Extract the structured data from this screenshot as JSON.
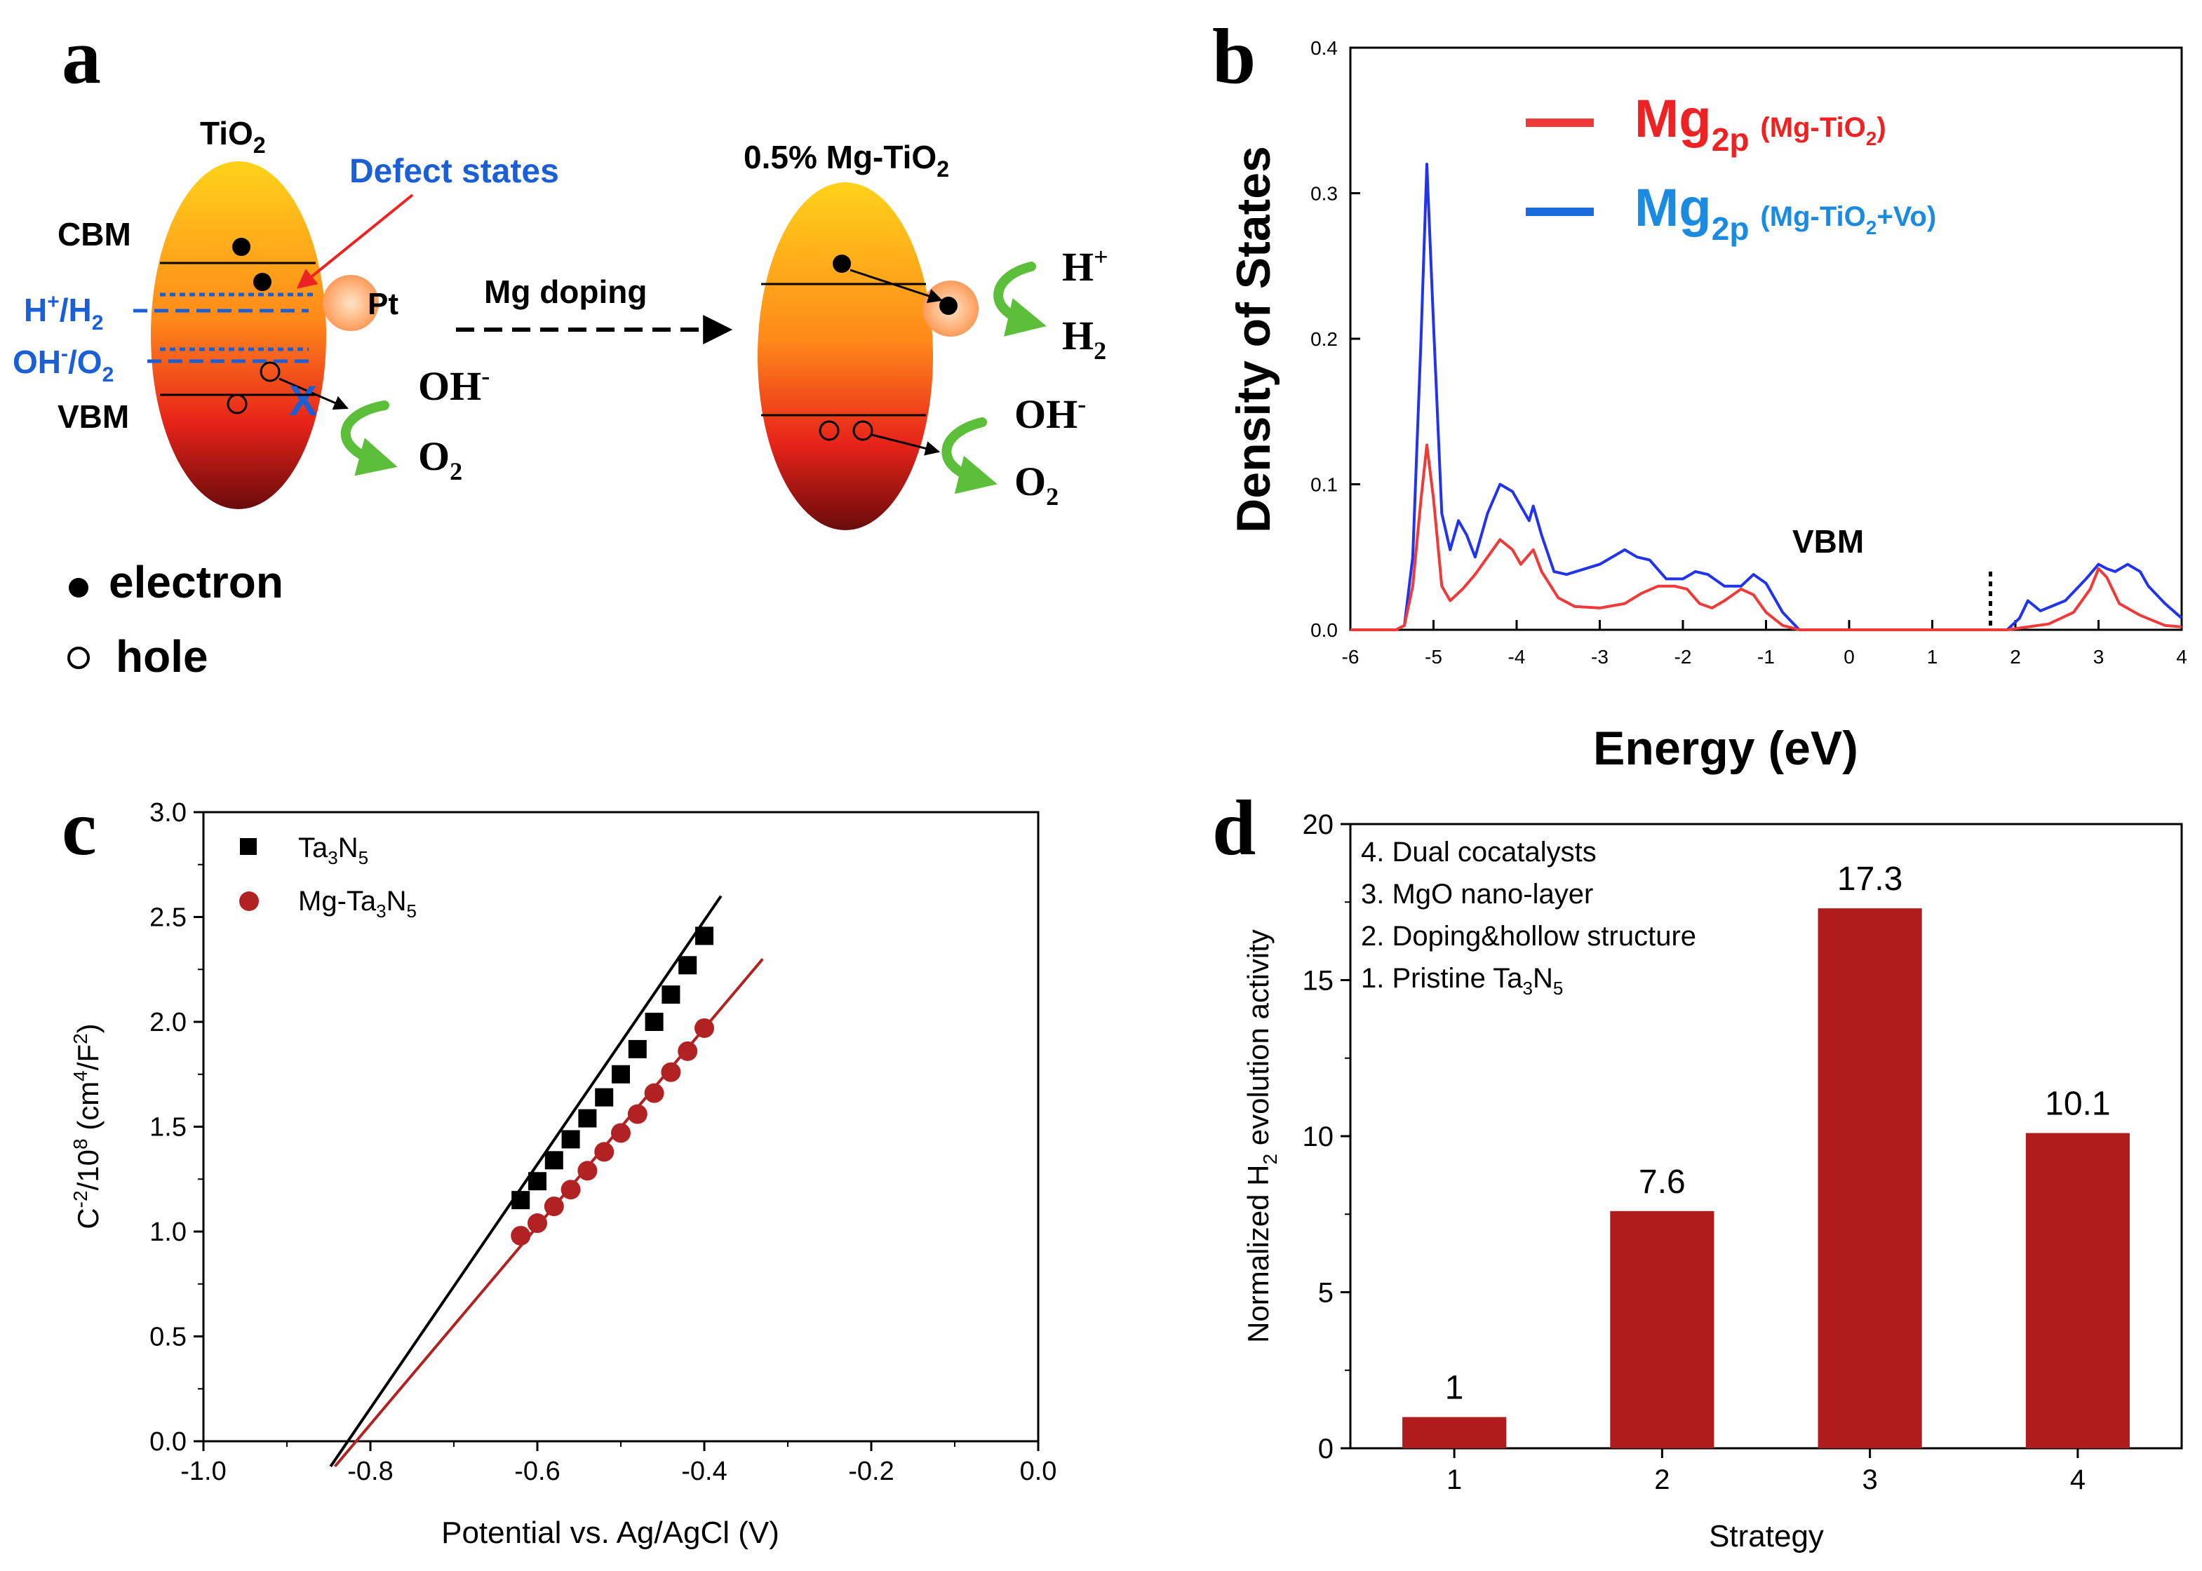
{
  "panels": {
    "a": {
      "letter": "a",
      "left_title": "TiO",
      "left_title_sub": "2",
      "defect_label": "Defect states",
      "cbm": "CBM",
      "vbm": "VBM",
      "h_label": "H",
      "h_sup": "+",
      "h_slash": "/H",
      "h_sub": "2",
      "oh_label": "OH",
      "oh_sup": "-",
      "oh_slash": "/O",
      "oh_sub": "2",
      "pt": "Pt",
      "arrow_label": "Mg  doping",
      "right_title": "0.5% Mg-TiO",
      "right_title_sub": "2",
      "oh_out": "OH",
      "oh_out_sup": "-",
      "o2_out": "O",
      "o2_out_sub": "2",
      "h_out": "H",
      "h_out_sup": "+",
      "h2_out": "H",
      "h2_out_sub": "2",
      "legend_electron": "electron",
      "legend_hole": "hole",
      "blocked_mark": "X"
    }
  },
  "colors": {
    "red": "#ee2222",
    "blue": "#1a5fd6",
    "dark_red": "#b01818",
    "green": "#5bbf3a",
    "dos_blue": "#2233ee",
    "dos_red": "#f03a3a",
    "ta3n5_line": "#000000",
    "mg_ta3n5": "#b22222"
  },
  "chart_data": [
    {
      "panel": "b",
      "letter": "b",
      "type": "line",
      "xlabel": "Energy (eV)",
      "ylabel": "Density of States",
      "xlim": [
        -6,
        4
      ],
      "ylim": [
        0,
        0.4
      ],
      "xticks": [
        "-6",
        "-5",
        "-4",
        "-3",
        "-2",
        "-1",
        "0",
        "1",
        "2",
        "3",
        "4"
      ],
      "yticks": [
        "0.0",
        "0.1",
        "0.2",
        "0.3",
        "0.4"
      ],
      "annotation": "VBM",
      "vbm_marker_x": 1.7,
      "legend": [
        {
          "main": "Mg",
          "sub": "2p",
          "paren": "(Mg-TiO",
          "paren_sub": "2",
          "paren_end": ")"
        },
        {
          "main": "Mg",
          "sub": "2p",
          "paren": "(Mg-TiO",
          "paren_sub": "2",
          "paren_end": "+Vo)"
        }
      ],
      "series": [
        {
          "name": "Mg2p (Mg-TiO2)",
          "x": [
            -6,
            -5.45,
            -5.35,
            -5.25,
            -5.15,
            -5.08,
            -5.0,
            -4.9,
            -4.8,
            -4.65,
            -4.5,
            -4.35,
            -4.2,
            -4.05,
            -3.95,
            -3.8,
            -3.7,
            -3.5,
            -3.3,
            -3.0,
            -2.7,
            -2.5,
            -2.3,
            -2.1,
            -1.95,
            -1.8,
            -1.65,
            -1.5,
            -1.3,
            -1.15,
            -1.0,
            -0.8,
            -0.6,
            0,
            1,
            1.9,
            2.4,
            2.7,
            2.9,
            3.0,
            3.1,
            3.25,
            3.5,
            3.8,
            4.0
          ],
          "y": [
            0,
            0,
            0.003,
            0.03,
            0.09,
            0.127,
            0.09,
            0.03,
            0.02,
            0.028,
            0.038,
            0.05,
            0.062,
            0.055,
            0.045,
            0.055,
            0.04,
            0.022,
            0.016,
            0.015,
            0.018,
            0.025,
            0.03,
            0.03,
            0.028,
            0.018,
            0.015,
            0.02,
            0.028,
            0.024,
            0.012,
            0.003,
            0,
            0,
            0,
            0,
            0.004,
            0.012,
            0.028,
            0.042,
            0.036,
            0.018,
            0.01,
            0.003,
            0.002
          ]
        },
        {
          "name": "Mg2p (Mg-TiO2+Vo)",
          "x": [
            -6,
            -5.45,
            -5.35,
            -5.25,
            -5.15,
            -5.08,
            -5.0,
            -4.9,
            -4.8,
            -4.7,
            -4.6,
            -4.5,
            -4.35,
            -4.2,
            -4.05,
            -3.95,
            -3.85,
            -3.8,
            -3.7,
            -3.55,
            -3.4,
            -3.0,
            -2.7,
            -2.55,
            -2.4,
            -2.2,
            -2.0,
            -1.85,
            -1.7,
            -1.5,
            -1.3,
            -1.15,
            -1.0,
            -0.8,
            -0.6,
            0,
            1,
            1.9,
            2.05,
            2.15,
            2.3,
            2.6,
            2.85,
            3.0,
            3.1,
            3.2,
            3.35,
            3.5,
            3.6,
            3.8,
            4.0
          ],
          "y": [
            0,
            0,
            0.003,
            0.05,
            0.2,
            0.32,
            0.21,
            0.08,
            0.055,
            0.075,
            0.065,
            0.05,
            0.08,
            0.1,
            0.095,
            0.085,
            0.075,
            0.085,
            0.065,
            0.04,
            0.038,
            0.045,
            0.055,
            0.05,
            0.048,
            0.035,
            0.035,
            0.04,
            0.038,
            0.03,
            0.03,
            0.038,
            0.032,
            0.012,
            0,
            0,
            0,
            0,
            0.008,
            0.02,
            0.013,
            0.02,
            0.035,
            0.045,
            0.042,
            0.04,
            0.045,
            0.04,
            0.03,
            0.018,
            0.008
          ]
        }
      ]
    },
    {
      "panel": "c",
      "letter": "c",
      "type": "scatter",
      "xlabel": "Potential vs. Ag/AgCl (V)",
      "ylabel": "C",
      "ylabel_sup1": "-2",
      "ylabel_mid": "/10",
      "ylabel_sup2": "8",
      "ylabel_end": " (cm",
      "ylabel_sup3": "4",
      "ylabel_end2": "/F",
      "ylabel_sup4": "2",
      "ylabel_close": ")",
      "xlim": [
        -1.0,
        0.0
      ],
      "ylim": [
        0.0,
        3.0
      ],
      "xticks": [
        "-1.0",
        "-0.8",
        "-0.6",
        "-0.4",
        "-0.2",
        "0.0"
      ],
      "yticks": [
        "0.0",
        "0.5",
        "1.0",
        "1.5",
        "2.0",
        "2.5",
        "3.0"
      ],
      "series": [
        {
          "name": "Ta3N5",
          "legend_main": "Ta",
          "legend_sub1": "3",
          "legend_mid": "N",
          "legend_sub2": "5",
          "marker": "square",
          "x": [
            -0.62,
            -0.6,
            -0.58,
            -0.56,
            -0.54,
            -0.52,
            -0.5,
            -0.48,
            -0.46,
            -0.44,
            -0.42,
            -0.4
          ],
          "y": [
            1.15,
            1.24,
            1.34,
            1.44,
            1.54,
            1.64,
            1.75,
            1.87,
            2.0,
            2.13,
            2.27,
            2.41
          ],
          "fit_x": [
            -0.87,
            -0.38
          ],
          "fit_y": [
            -0.25,
            2.6
          ]
        },
        {
          "name": "Mg-Ta3N5",
          "legend_main": "Mg-Ta",
          "legend_sub1": "3",
          "legend_mid": "N",
          "legend_sub2": "5",
          "marker": "circle",
          "x": [
            -0.62,
            -0.6,
            -0.58,
            -0.56,
            -0.54,
            -0.52,
            -0.5,
            -0.48,
            -0.46,
            -0.44,
            -0.42,
            -0.4
          ],
          "y": [
            0.98,
            1.04,
            1.12,
            1.2,
            1.29,
            1.38,
            1.47,
            1.56,
            1.66,
            1.76,
            1.86,
            1.97
          ],
          "fit_x": [
            -0.87,
            -0.33
          ],
          "fit_y": [
            -0.25,
            2.3
          ]
        }
      ]
    },
    {
      "panel": "d",
      "letter": "d",
      "type": "bar",
      "xlabel": "Strategy",
      "ylabel": "Normalized H",
      "ylabel_sub": "2",
      "ylabel_end": " evolution activity",
      "categories": [
        "1",
        "2",
        "3",
        "4"
      ],
      "values": [
        1,
        7.6,
        17.3,
        10.1
      ],
      "value_labels": [
        "1",
        "7.6",
        "17.3",
        "10.1"
      ],
      "ylim": [
        0,
        20
      ],
      "yticks": [
        "0",
        "5",
        "10",
        "15",
        "20"
      ],
      "notes": [
        {
          "text": "4. Dual cocatalysts"
        },
        {
          "text": "3. MgO nano-layer"
        },
        {
          "text": "2. Doping&hollow structure"
        },
        {
          "text": "1. Pristine Ta",
          "sub1": "3",
          "mid": "N",
          "sub2": "5"
        }
      ],
      "color": "#b01c1c"
    }
  ]
}
